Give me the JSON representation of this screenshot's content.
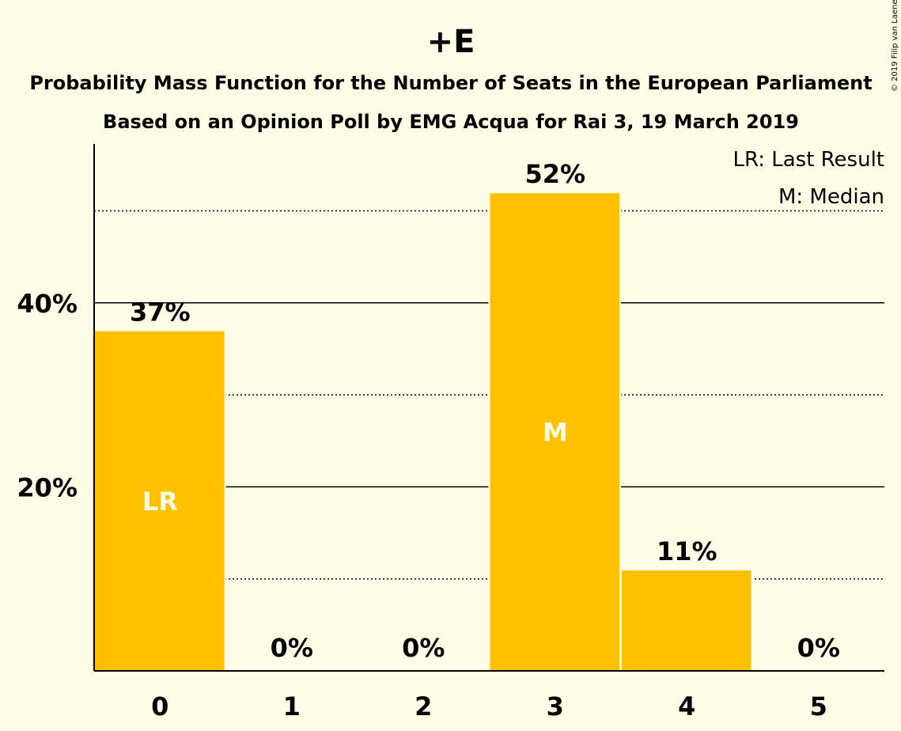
{
  "chart_data": {
    "type": "bar",
    "title": "+E",
    "subtitle_line1": "Probability Mass Function for the Number of Seats in the European Parliament",
    "subtitle_line2": "Based on an Opinion Poll by EMG Acqua for Rai 3, 19 March 2019",
    "copyright": "© 2019 Filip van Laenen",
    "categories": [
      "0",
      "1",
      "2",
      "3",
      "4",
      "5"
    ],
    "values": [
      37,
      0,
      0,
      52,
      11,
      0
    ],
    "value_labels": [
      "37%",
      "0%",
      "0%",
      "52%",
      "11%",
      "0%"
    ],
    "bar_marks": [
      "LR",
      "",
      "",
      "M",
      "",
      ""
    ],
    "y_ticks": [
      {
        "value": 20,
        "label": "20%"
      },
      {
        "value": 40,
        "label": "40%"
      }
    ],
    "ylim": [
      0,
      57
    ],
    "grid": {
      "solid": [
        20,
        40
      ],
      "dotted": [
        10,
        30,
        50
      ]
    },
    "legend": [
      "LR: Last Result",
      "M: Median"
    ],
    "legend_placement": "top-right",
    "colors": {
      "bar": "#FFC000",
      "background": "#FFFDE6",
      "mark_text": "#FFFDE6",
      "text": "#000000"
    }
  }
}
